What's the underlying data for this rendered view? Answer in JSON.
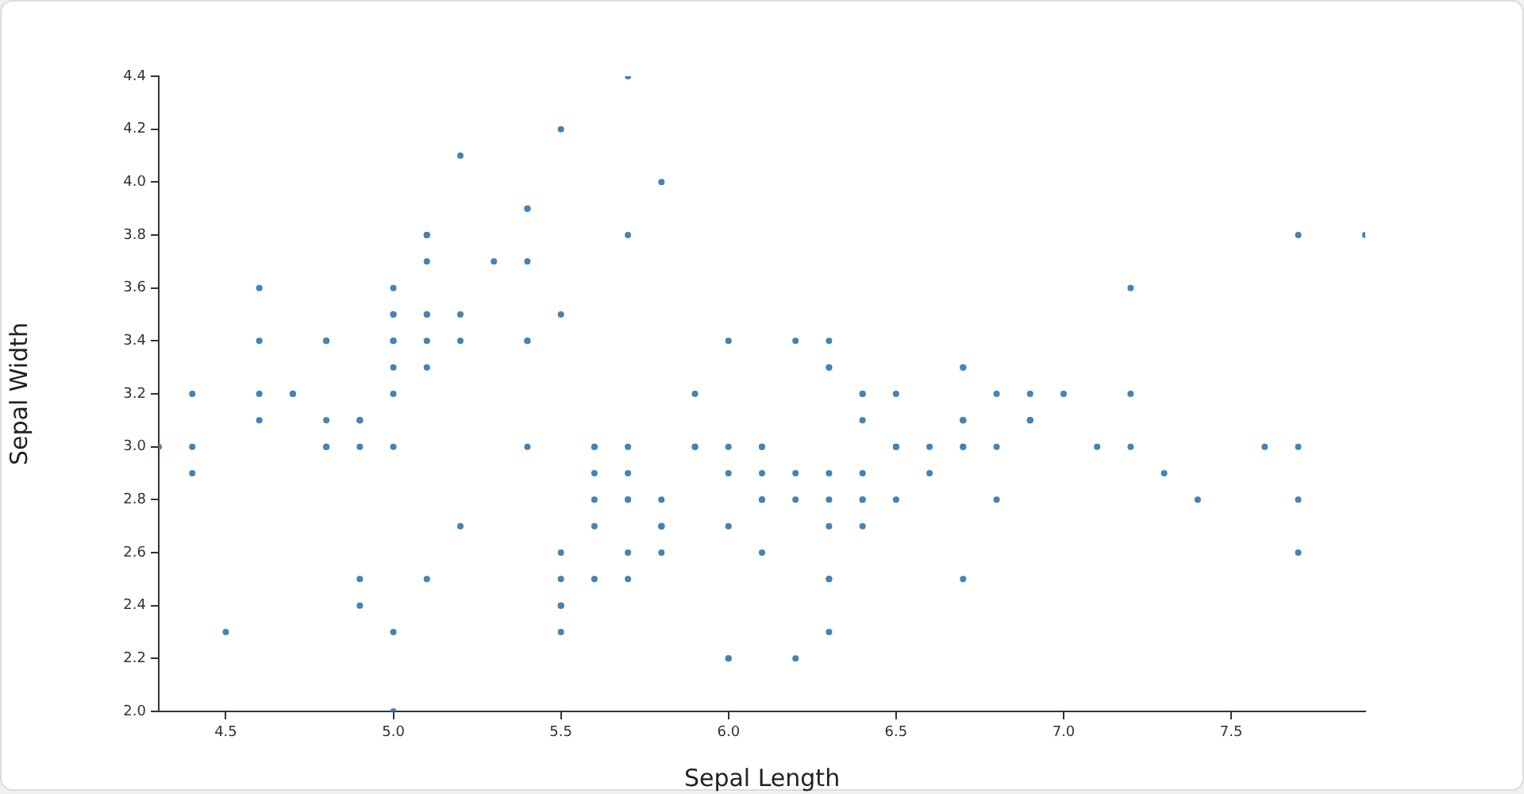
{
  "chart_data": {
    "type": "scatter",
    "xlabel": "Sepal Length",
    "ylabel": "Sepal Width",
    "xlim": [
      4.3,
      7.9
    ],
    "ylim": [
      2.0,
      4.4
    ],
    "xticks": [
      {
        "value": 4.5,
        "label": "4.5"
      },
      {
        "value": 5,
        "label": "5.0"
      },
      {
        "value": 5.5,
        "label": "5.5"
      },
      {
        "value": 6,
        "label": "6.0"
      },
      {
        "value": 6.5,
        "label": "6.5"
      },
      {
        "value": 7,
        "label": "7.0"
      },
      {
        "value": 7.5,
        "label": "7.5"
      }
    ],
    "yticks": [
      {
        "value": 2,
        "label": "2.0"
      },
      {
        "value": 2.2,
        "label": "2.2"
      },
      {
        "value": 2.4,
        "label": "2.4"
      },
      {
        "value": 2.6,
        "label": "2.6"
      },
      {
        "value": 2.8,
        "label": "2.8"
      },
      {
        "value": 3,
        "label": "3.0"
      },
      {
        "value": 3.2,
        "label": "3.2"
      },
      {
        "value": 3.4,
        "label": "3.4"
      },
      {
        "value": 3.6,
        "label": "3.6"
      },
      {
        "value": 3.8,
        "label": "3.8"
      },
      {
        "value": 4,
        "label": "4.0"
      },
      {
        "value": 4.2,
        "label": "4.2"
      },
      {
        "value": 4.4,
        "label": "4.4"
      }
    ],
    "grid": false,
    "legend": false,
    "marker": "circle",
    "series": [
      {
        "color": "#4682b4",
        "x": [
          5.1,
          4.9,
          4.7,
          4.6,
          5.0,
          5.4,
          4.6,
          5.0,
          4.4,
          4.9,
          5.4,
          4.8,
          4.8,
          4.3,
          5.8,
          5.7,
          5.4,
          5.1,
          5.7,
          5.1,
          5.4,
          5.1,
          4.6,
          5.1,
          4.8,
          5.0,
          5.0,
          5.2,
          5.2,
          4.7,
          4.8,
          5.4,
          5.2,
          5.5,
          4.9,
          5.0,
          5.5,
          4.9,
          4.4,
          5.1,
          5.0,
          4.5,
          4.4,
          5.0,
          5.1,
          4.8,
          5.1,
          4.6,
          5.3,
          5.0,
          7.0,
          6.4,
          6.9,
          5.5,
          6.5,
          5.7,
          6.3,
          4.9,
          6.6,
          5.2,
          5.0,
          5.9,
          6.0,
          6.1,
          5.6,
          6.7,
          5.6,
          5.8,
          6.2,
          5.6,
          5.9,
          6.1,
          6.3,
          6.1,
          6.4,
          6.6,
          6.8,
          6.7,
          6.0,
          5.7,
          5.5,
          5.5,
          5.8,
          6.0,
          5.4,
          6.0,
          6.7,
          6.3,
          5.6,
          5.5,
          5.5,
          6.1,
          5.8,
          5.0,
          5.6,
          5.7,
          5.7,
          6.2,
          5.1,
          5.7,
          6.3,
          5.8,
          7.1,
          6.3,
          6.5,
          7.6,
          4.9,
          7.3,
          6.7,
          7.2,
          6.5,
          6.4,
          6.8,
          5.7,
          5.8,
          6.4,
          6.5,
          7.7,
          7.7,
          6.0,
          6.9,
          5.6,
          7.7,
          6.3,
          6.7,
          7.2,
          6.2,
          6.1,
          6.4,
          7.2,
          7.4,
          7.9,
          6.4,
          6.3,
          6.1,
          7.7,
          6.3,
          6.4,
          6.0,
          6.9,
          6.7,
          6.9,
          5.8,
          6.8,
          6.7,
          6.7,
          6.3,
          6.5,
          6.2,
          5.9
        ],
        "values": [
          3.5,
          3.0,
          3.2,
          3.1,
          3.6,
          3.9,
          3.4,
          3.4,
          2.9,
          3.1,
          3.7,
          3.4,
          3.0,
          3.0,
          4.0,
          4.4,
          3.9,
          3.5,
          3.8,
          3.8,
          3.4,
          3.7,
          3.6,
          3.3,
          3.4,
          3.0,
          3.4,
          3.5,
          3.4,
          3.2,
          3.1,
          3.4,
          4.1,
          4.2,
          3.1,
          3.2,
          3.5,
          3.1,
          3.0,
          3.4,
          3.5,
          2.3,
          3.2,
          3.5,
          3.8,
          3.0,
          3.8,
          3.2,
          3.7,
          3.3,
          3.2,
          3.2,
          3.1,
          2.3,
          2.8,
          2.8,
          3.3,
          2.4,
          2.9,
          2.7,
          2.0,
          3.0,
          2.2,
          2.9,
          2.9,
          3.1,
          3.0,
          2.7,
          2.2,
          2.5,
          3.2,
          2.8,
          2.5,
          2.8,
          2.9,
          3.0,
          2.8,
          3.0,
          2.9,
          2.6,
          2.4,
          2.4,
          2.7,
          2.7,
          3.0,
          3.4,
          3.1,
          2.3,
          3.0,
          2.5,
          2.6,
          3.0,
          2.6,
          2.3,
          2.7,
          3.0,
          2.9,
          2.9,
          2.5,
          2.8,
          3.3,
          2.7,
          3.0,
          2.9,
          3.0,
          3.0,
          2.5,
          2.9,
          2.5,
          3.6,
          3.2,
          2.7,
          3.0,
          2.5,
          2.8,
          3.2,
          3.0,
          3.8,
          2.6,
          2.2,
          3.2,
          2.8,
          2.8,
          2.7,
          3.3,
          3.2,
          2.8,
          3.0,
          2.8,
          3.0,
          2.8,
          3.8,
          2.8,
          2.8,
          2.6,
          3.0,
          3.4,
          3.1,
          3.0,
          3.1,
          3.1,
          3.1,
          2.7,
          3.2,
          3.3,
          3.0,
          2.5,
          3.0,
          3.4,
          3.0
        ]
      }
    ]
  }
}
